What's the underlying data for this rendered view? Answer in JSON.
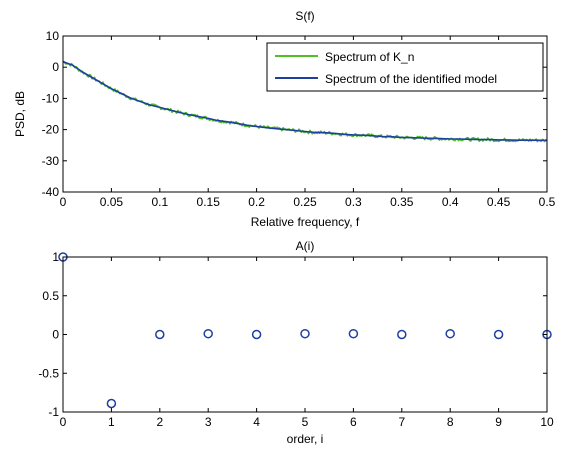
{
  "chart_data": [
    {
      "type": "line",
      "title": "S(f)",
      "xlabel": "Relative frequency, f",
      "ylabel": "PSD, dB",
      "xlim": [
        0,
        0.5
      ],
      "ylim": [
        -40,
        10
      ],
      "xticks": [
        "0",
        "0.05",
        "0.1",
        "0.15",
        "0.2",
        "0.25",
        "0.3",
        "0.35",
        "0.4",
        "0.45",
        "0.5"
      ],
      "yticks": [
        "10",
        "0",
        "-10",
        "-20",
        "-30",
        "-40"
      ],
      "grid": false,
      "legend_position": "top-right",
      "series": [
        {
          "name": "Spectrum of K_n",
          "color": "#4fbf26",
          "style": "noisy",
          "x": [
            0,
            0.01,
            0.02,
            0.03,
            0.04,
            0.05,
            0.06,
            0.07,
            0.08,
            0.09,
            0.1,
            0.11,
            0.12,
            0.13,
            0.14,
            0.15,
            0.16,
            0.17,
            0.18,
            0.19,
            0.2,
            0.21,
            0.22,
            0.23,
            0.24,
            0.25,
            0.26,
            0.27,
            0.28,
            0.29,
            0.3,
            0.31,
            0.32,
            0.33,
            0.34,
            0.35,
            0.36,
            0.37,
            0.38,
            0.39,
            0.4,
            0.41,
            0.42,
            0.43,
            0.44,
            0.45,
            0.46,
            0.47,
            0.48,
            0.49,
            0.5
          ],
          "values": [
            1.8,
            0.6,
            -1.5,
            -3.3,
            -5.1,
            -6.9,
            -8.4,
            -9.9,
            -11.0,
            -12.1,
            -12.9,
            -13.7,
            -14.5,
            -15.2,
            -15.8,
            -16.4,
            -17.1,
            -17.5,
            -18.0,
            -18.6,
            -19.0,
            -19.4,
            -19.7,
            -20.0,
            -20.3,
            -20.6,
            -20.9,
            -21.0,
            -21.2,
            -21.5,
            -21.7,
            -21.8,
            -22.0,
            -22.2,
            -22.3,
            -22.5,
            -22.6,
            -22.7,
            -22.8,
            -22.9,
            -23.0,
            -23.0,
            -23.1,
            -23.2,
            -23.2,
            -23.3,
            -23.3,
            -23.4,
            -23.4,
            -23.4,
            -23.5
          ]
        },
        {
          "name": "Spectrum of the identified model",
          "color": "#1f3f9f",
          "style": "smooth",
          "x": [
            0,
            0.01,
            0.02,
            0.03,
            0.04,
            0.05,
            0.06,
            0.07,
            0.08,
            0.09,
            0.1,
            0.11,
            0.12,
            0.13,
            0.14,
            0.15,
            0.16,
            0.17,
            0.18,
            0.19,
            0.2,
            0.21,
            0.22,
            0.23,
            0.24,
            0.25,
            0.26,
            0.27,
            0.28,
            0.29,
            0.3,
            0.31,
            0.32,
            0.33,
            0.34,
            0.35,
            0.36,
            0.37,
            0.38,
            0.39,
            0.4,
            0.41,
            0.42,
            0.43,
            0.44,
            0.45,
            0.46,
            0.47,
            0.48,
            0.49,
            0.5
          ],
          "values": [
            1.8,
            0.6,
            -1.5,
            -3.3,
            -5.1,
            -6.9,
            -8.4,
            -9.9,
            -11.0,
            -12.1,
            -12.9,
            -13.7,
            -14.5,
            -15.2,
            -15.8,
            -16.4,
            -17.1,
            -17.5,
            -18.0,
            -18.6,
            -19.0,
            -19.4,
            -19.7,
            -20.0,
            -20.3,
            -20.6,
            -20.9,
            -21.0,
            -21.2,
            -21.5,
            -21.7,
            -21.8,
            -22.0,
            -22.2,
            -22.3,
            -22.5,
            -22.6,
            -22.7,
            -22.8,
            -22.9,
            -23.0,
            -23.0,
            -23.1,
            -23.2,
            -23.2,
            -23.3,
            -23.3,
            -23.4,
            -23.4,
            -23.4,
            -23.5
          ]
        }
      ]
    },
    {
      "type": "scatter",
      "title": "A(i)",
      "xlabel": "order, i",
      "ylabel": "",
      "xlim": [
        0,
        10
      ],
      "ylim": [
        -1,
        1
      ],
      "xticks": [
        "0",
        "1",
        "2",
        "3",
        "4",
        "5",
        "6",
        "7",
        "8",
        "9",
        "10"
      ],
      "yticks": [
        "1",
        "0.5",
        "0",
        "-0.5",
        "-1"
      ],
      "grid": false,
      "marker": "circle-open",
      "color": "#1f3f9f",
      "x": [
        0,
        1,
        2,
        3,
        4,
        5,
        6,
        7,
        8,
        9,
        10
      ],
      "values": [
        1.0,
        -0.89,
        0.0,
        0.01,
        0.0,
        0.01,
        0.01,
        0.0,
        0.01,
        0.0,
        0.0
      ]
    }
  ]
}
